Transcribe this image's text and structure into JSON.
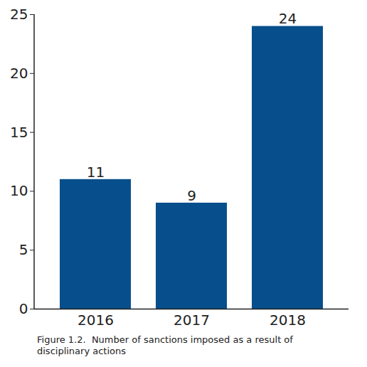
{
  "chart_data": {
    "type": "bar",
    "title": "Figure 1.2.  Number of sanctions imposed as a result of disciplinary actions",
    "categories": [
      "2016",
      "2017",
      "2018"
    ],
    "values": [
      11,
      9,
      24
    ],
    "color": "#064f8c",
    "ylim": [
      0,
      25
    ],
    "yticks": [
      0,
      5,
      10,
      15,
      20,
      25
    ],
    "grid": false,
    "data_labels": true
  }
}
